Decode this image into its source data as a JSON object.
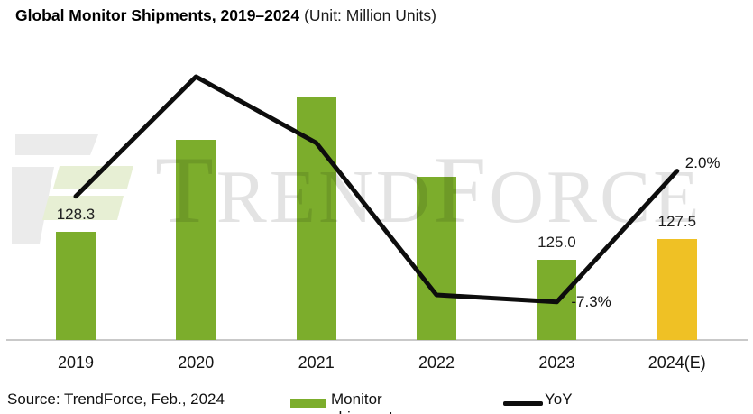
{
  "header": {
    "title": "Global Monitor Shipments, 2019–2024",
    "unit_note": "(Unit: Million Units)"
  },
  "watermark": {
    "brand": "TrendForce",
    "letters": [
      {
        "text": "T",
        "size": "large"
      },
      {
        "text": "REND",
        "size": "small"
      },
      {
        "text": "F",
        "size": "large"
      },
      {
        "text": "ORCE",
        "size": "small"
      }
    ]
  },
  "chart_data": {
    "type": "bar",
    "title": "Global Monitor Shipments, 2019–2024",
    "unit": "Million Units",
    "categories": [
      "2019",
      "2020",
      "2021",
      "2022",
      "2023",
      "2024(E)"
    ],
    "series": [
      {
        "name": "Monitor shipments",
        "type": "bar",
        "values": [
          128.3,
          139.2,
          144.2,
          134.8,
          125.0,
          127.5
        ],
        "value_labels_shown": {
          "0": "128.3",
          "4": "125.0",
          "5": "127.5"
        },
        "estimated_indices": [
          1,
          2,
          3
        ],
        "bar_colors": [
          "#7cad2c",
          "#7cad2c",
          "#7cad2c",
          "#7cad2c",
          "#7cad2c",
          "#efc125"
        ]
      },
      {
        "name": "YoY",
        "type": "line",
        "values": [
          0.2,
          8.7,
          4.0,
          -6.8,
          -7.3,
          2.0
        ],
        "value_labels_shown": {
          "4": "-7.3%",
          "5": "2.0%"
        },
        "estimated_indices": [
          0,
          1,
          2,
          3
        ],
        "color": "#0d0d0d"
      }
    ],
    "axes": {
      "bar_axis": {
        "min": 115.5,
        "max": 149.3,
        "visible": false
      },
      "line_axis": {
        "min": -10.0,
        "max": 10.3,
        "visible": false
      }
    },
    "grid": false,
    "legend_position": "bottom"
  },
  "footer": {
    "source": "Source: TrendForce, Feb., 2024",
    "legend": [
      {
        "label": "Monitor shipments",
        "marker": "bar",
        "color": "#7cad2c"
      },
      {
        "label": "YoY",
        "marker": "line",
        "color": "#0d0d0d"
      }
    ]
  },
  "colors": {
    "bar_green": "#7cad2c",
    "bar_gold": "#efc125",
    "line_black": "#0d0d0d",
    "axis_gray": "#c9c9c9",
    "watermark_gray": "#ebebeb",
    "watermark_green": "#e7efd4"
  }
}
